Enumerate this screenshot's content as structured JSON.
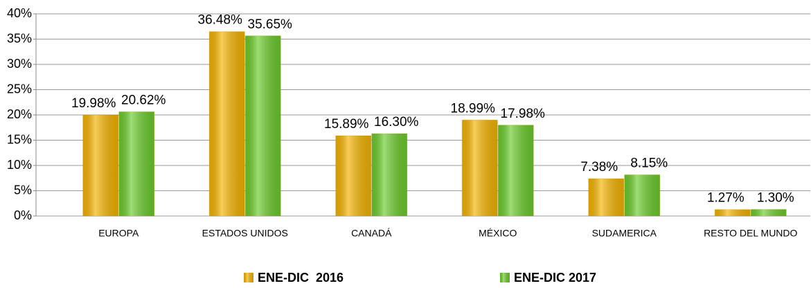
{
  "chart_data": {
    "type": "bar",
    "categories": [
      "EUROPA",
      "ESTADOS UNIDOS",
      "CANADÁ",
      "MÉXICO",
      "SUDAMERICA",
      "RESTO DEL MUNDO"
    ],
    "series": [
      {
        "name": "ENE-DIC  2016",
        "color": "#f5b400",
        "values": [
          19.98,
          36.48,
          15.89,
          18.99,
          7.38,
          1.27
        ],
        "value_labels": [
          "19.98%",
          "36.48%",
          "15.89%",
          "18.99%",
          "7.38%",
          "1.27%"
        ]
      },
      {
        "name": "ENE-DIC 2017",
        "color": "#6ccc2c",
        "values": [
          20.62,
          35.65,
          16.3,
          17.98,
          8.15,
          1.3
        ],
        "value_labels": [
          "20.62%",
          "35.65%",
          "16.30%",
          "17.98%",
          "8.15%",
          "1.30%"
        ]
      }
    ],
    "ylim": [
      0,
      40
    ],
    "yticks": [
      {
        "value": 0,
        "label": "0%"
      },
      {
        "value": 5,
        "label": "5%"
      },
      {
        "value": 10,
        "label": "10%"
      },
      {
        "value": 15,
        "label": "15%"
      },
      {
        "value": 20,
        "label": "20%"
      },
      {
        "value": 25,
        "label": "25%"
      },
      {
        "value": 30,
        "label": "30%"
      },
      {
        "value": 35,
        "label": "35%"
      },
      {
        "value": 40,
        "label": "40%"
      }
    ],
    "grid": true,
    "legend": "bottom"
  }
}
